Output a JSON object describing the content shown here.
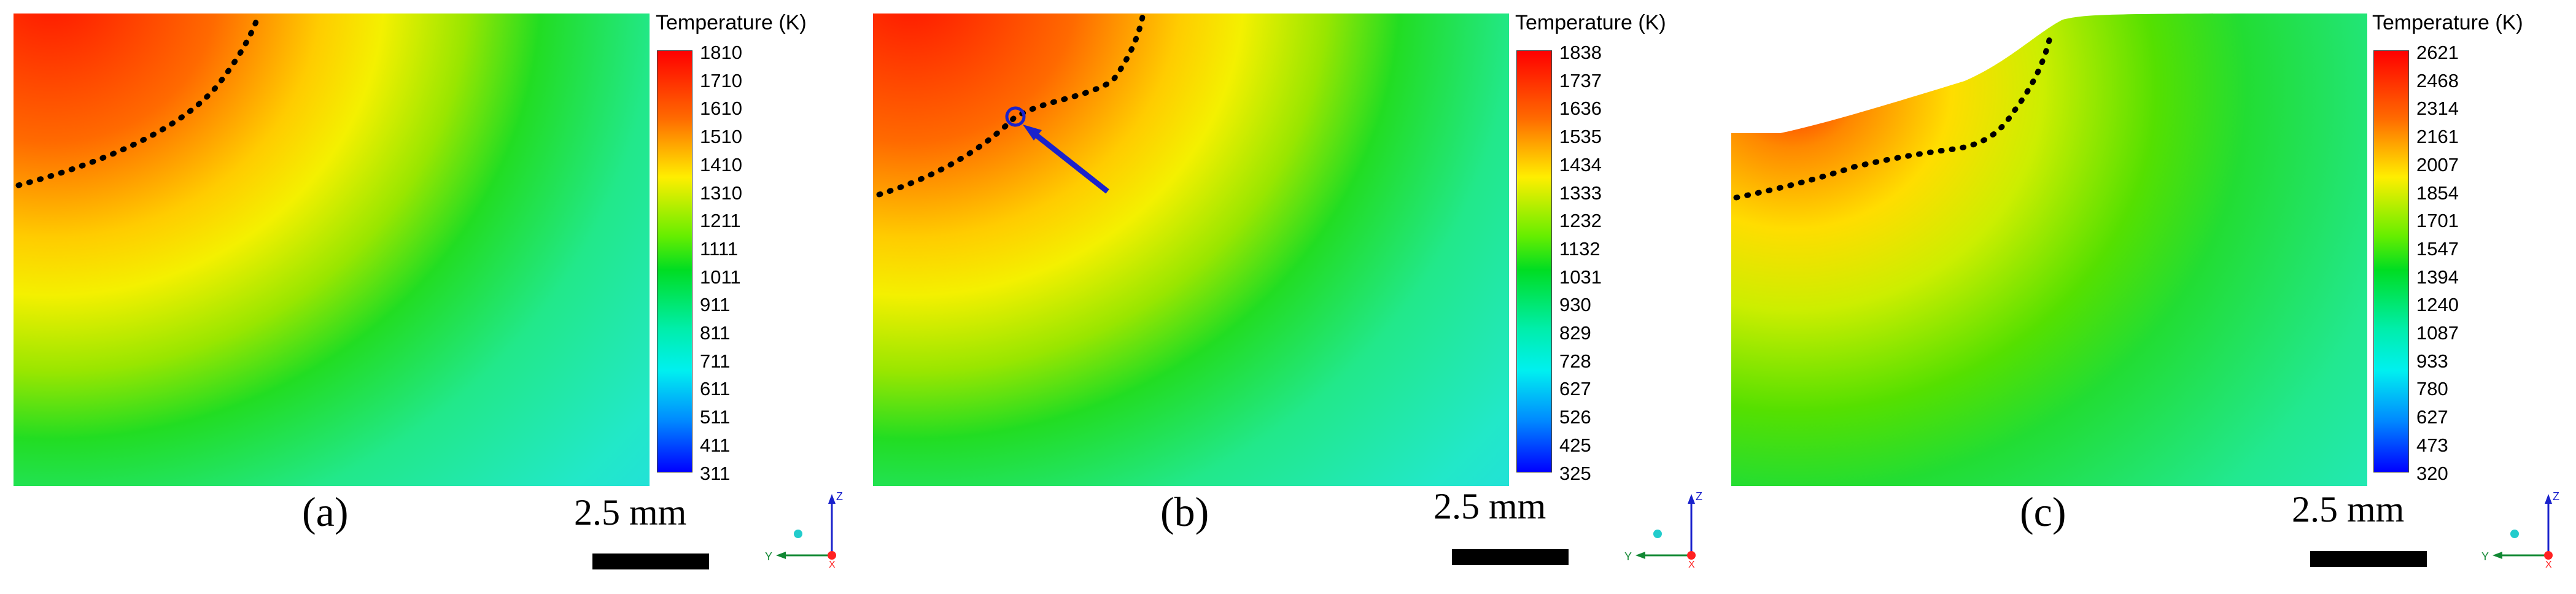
{
  "colorbar_title": "Temperature (K)",
  "scale_label": "2.5 mm",
  "colors": {
    "hot": "#ff1a00",
    "mid": "#00dd22",
    "cool": "#00eedd",
    "cold": "#0000ff",
    "isotherm": "#000000",
    "arrow": "#1a22cc"
  },
  "panels": [
    {
      "label": "(a)",
      "ticks": [
        "1810",
        "1710",
        "1610",
        "1510",
        "1410",
        "1310",
        "1211",
        "1111",
        "1011",
        "911",
        "811",
        "711",
        "611",
        "511",
        "411",
        "311"
      ]
    },
    {
      "label": "(b)",
      "ticks": [
        "1838",
        "1737",
        "1636",
        "1535",
        "1434",
        "1333",
        "1232",
        "1132",
        "1031",
        "930",
        "829",
        "728",
        "627",
        "526",
        "425",
        "325"
      ]
    },
    {
      "label": "(c)",
      "ticks": [
        "2621",
        "2468",
        "2314",
        "2161",
        "2007",
        "1854",
        "1701",
        "1547",
        "1394",
        "1240",
        "1087",
        "933",
        "780",
        "627",
        "473",
        "320"
      ]
    }
  ],
  "triad": {
    "z": "Z",
    "y": "Y",
    "x": "X"
  }
}
